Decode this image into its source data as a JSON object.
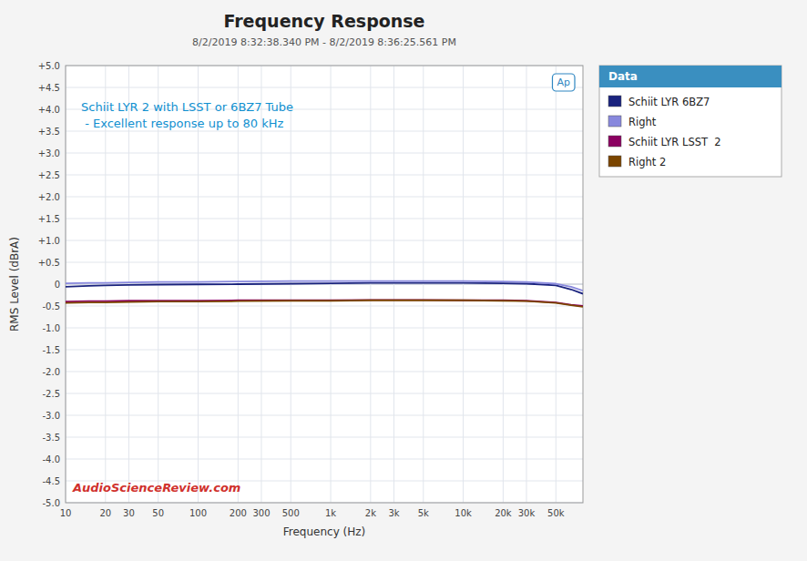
{
  "chart_data": {
    "type": "line",
    "title": "Frequency Response",
    "subtitle": "8/2/2019 8:32:38.340 PM - 8/2/2019 8:36:25.561 PM",
    "annotations": [
      "Schiit LYR 2 with LSST or 6BZ7 Tube\n - Excellent response up to 80 kHz",
      "AudioScienceReview.com",
      "Ap"
    ],
    "x_label": "Frequency (Hz)",
    "y_label": "RMS Level (dBrA)",
    "legend_title": "Data",
    "x": [
      10,
      15,
      20,
      30,
      50,
      100,
      200,
      500,
      1000,
      2000,
      5000,
      10000,
      20000,
      30000,
      50000,
      65000,
      80000
    ],
    "series": [
      {
        "name": "Schiit LYR 6BZ7",
        "color": "#1a237e",
        "values": [
          -0.06,
          -0.04,
          -0.03,
          -0.02,
          -0.01,
          -0.005,
          0.0,
          0.01,
          0.02,
          0.03,
          0.03,
          0.03,
          0.02,
          0.01,
          -0.03,
          -0.12,
          -0.22
        ]
      },
      {
        "name": "Right",
        "color": "#8888dd",
        "values": [
          0.02,
          0.03,
          0.03,
          0.04,
          0.05,
          0.05,
          0.06,
          0.07,
          0.07,
          0.07,
          0.07,
          0.07,
          0.06,
          0.05,
          0.01,
          -0.06,
          -0.15
        ]
      },
      {
        "name": "Schiit LYR LSST  2",
        "color": "#8b0060",
        "values": [
          -0.4,
          -0.39,
          -0.39,
          -0.38,
          -0.38,
          -0.38,
          -0.37,
          -0.37,
          -0.37,
          -0.36,
          -0.36,
          -0.37,
          -0.37,
          -0.38,
          -0.42,
          -0.47,
          -0.5
        ]
      },
      {
        "name": "Right 2",
        "color": "#7b4500",
        "values": [
          -0.43,
          -0.42,
          -0.42,
          -0.41,
          -0.4,
          -0.4,
          -0.39,
          -0.38,
          -0.38,
          -0.37,
          -0.37,
          -0.37,
          -0.38,
          -0.39,
          -0.43,
          -0.48,
          -0.52
        ]
      }
    ],
    "xlim": [
      10,
      80000
    ],
    "xticks": [
      10,
      20,
      30,
      50,
      100,
      200,
      300,
      500,
      {
        "value": 1000,
        "label": "1k"
      },
      {
        "value": 2000,
        "label": "2k"
      },
      {
        "value": 3000,
        "label": "3k"
      },
      {
        "value": 5000,
        "label": "5k"
      },
      {
        "value": 10000,
        "label": "10k"
      },
      {
        "value": 20000,
        "label": "20k"
      },
      {
        "value": 30000,
        "label": "30k"
      },
      {
        "value": 50000,
        "label": "50k"
      }
    ],
    "ylim": [
      -5.0,
      5.0
    ],
    "yticks": [
      {
        "value": -5.0,
        "label": "-5.0"
      },
      -4.5,
      {
        "value": -4.0,
        "label": "-4.0"
      },
      -3.5,
      {
        "value": -3.0,
        "label": "-3.0"
      },
      -2.5,
      {
        "value": -2.0,
        "label": "-2.0"
      },
      -1.5,
      {
        "value": -1.0,
        "label": "-1.0"
      },
      -0.5,
      0,
      {
        "value": 0.5,
        "label": "+0.5"
      },
      {
        "value": 1.0,
        "label": "+1.0"
      },
      {
        "value": 1.5,
        "label": "+1.5"
      },
      {
        "value": 2.0,
        "label": "+2.0"
      },
      {
        "value": 2.5,
        "label": "+2.5"
      },
      {
        "value": 3.0,
        "label": "+3.0"
      },
      {
        "value": 3.5,
        "label": "+3.5"
      },
      {
        "value": 4.0,
        "label": "+4.0"
      },
      {
        "value": 4.5,
        "label": "+4.5"
      },
      {
        "value": 5.0,
        "label": "+5.0"
      }
    ],
    "log": "x",
    "grid": true,
    "legend": "right"
  }
}
